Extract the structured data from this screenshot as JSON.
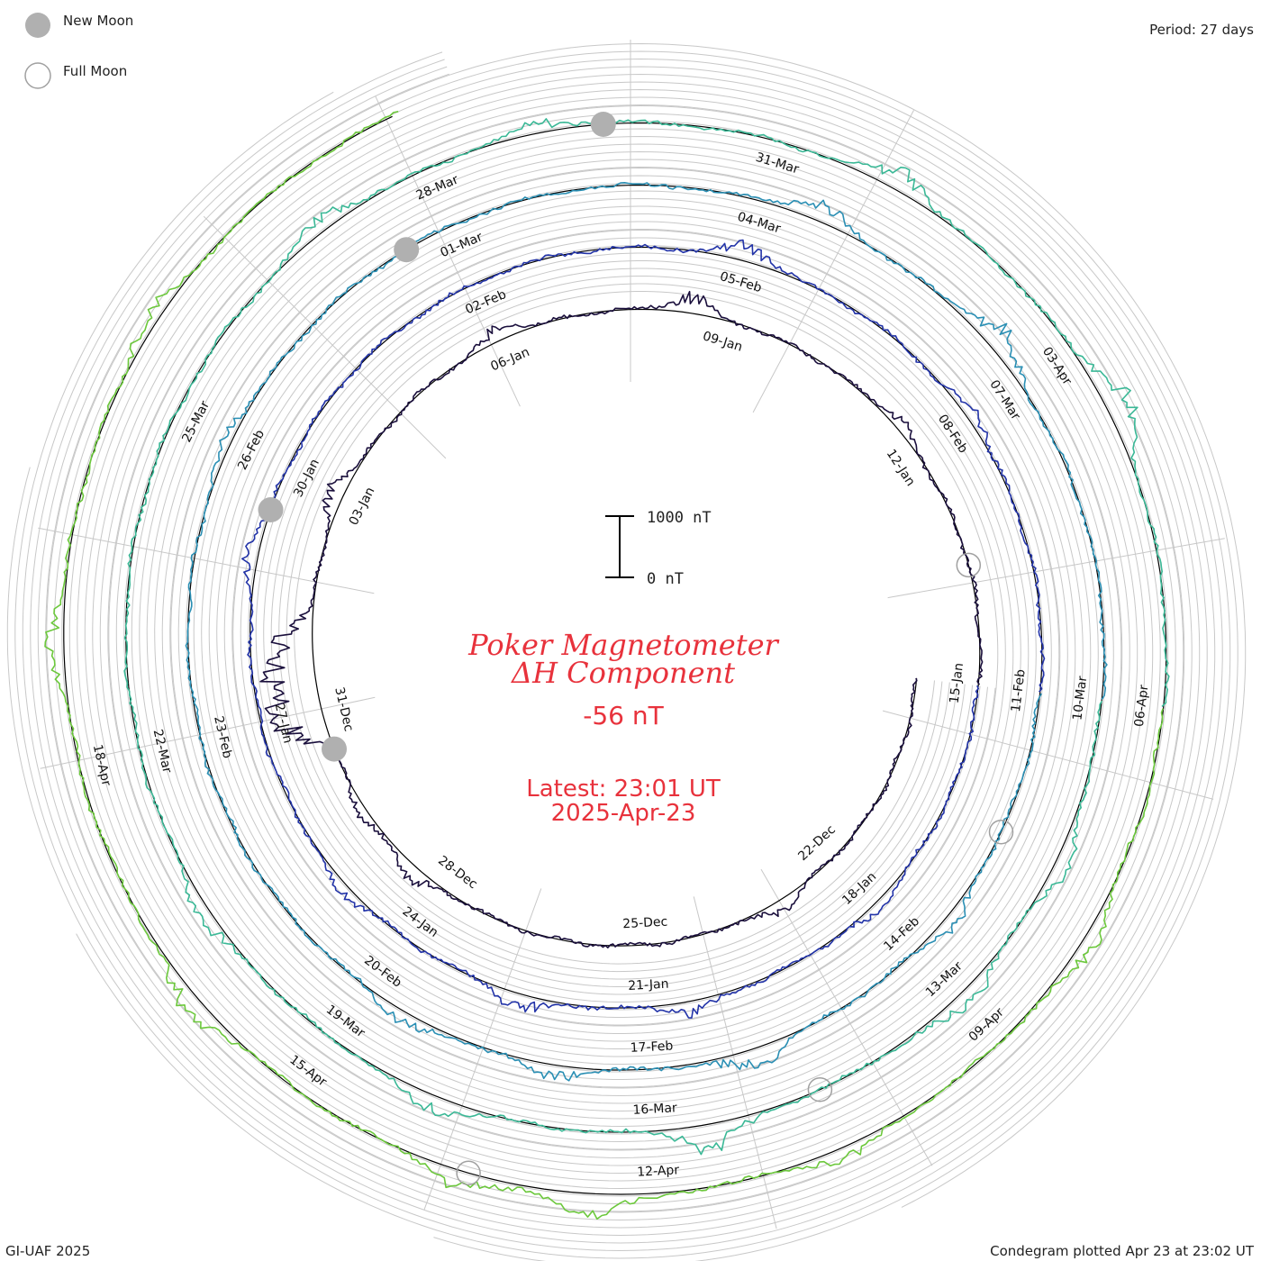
{
  "legend": {
    "new_moon_label": "New Moon",
    "full_moon_label": "Full Moon",
    "new_moon_color": "#b0b0b0",
    "full_moon_color": "#a0a0a0"
  },
  "period_label": "Period: 27 days",
  "footer": {
    "left": "GI-UAF 2025",
    "right": "Condegram plotted Apr 23 at 23:02 UT"
  },
  "center": {
    "title_line1": "Poker Magnetometer",
    "title_line2": "ΔH Component",
    "value": "-56 nT",
    "latest_line1": "Latest: 23:01 UT",
    "latest_line2": "2025-Apr-23",
    "title_color": "#e8323c"
  },
  "scale_bar": {
    "top_label": "1000 nT",
    "bottom_label": "0 nT"
  },
  "chart_data": {
    "type": "line",
    "subtype": "condegram-spiral",
    "period_days": 27,
    "start_date": "2024-12-19",
    "end_date": "2025-04-23",
    "scale": "1000 nT per scale bar",
    "grid": true,
    "date_labels": [
      {
        "text": "22-Dec"
      },
      {
        "text": "25-Dec"
      },
      {
        "text": "28-Dec"
      },
      {
        "text": "31-Dec"
      },
      {
        "text": "03-Jan"
      },
      {
        "text": "06-Jan"
      },
      {
        "text": "09-Jan"
      },
      {
        "text": "12-Jan"
      },
      {
        "text": "15-Jan"
      },
      {
        "text": "18-Jan"
      },
      {
        "text": "21-Jan"
      },
      {
        "text": "24-Jan"
      },
      {
        "text": "27-Jan"
      },
      {
        "text": "30-Jan"
      },
      {
        "text": "02-Feb"
      },
      {
        "text": "05-Feb"
      },
      {
        "text": "08-Feb"
      },
      {
        "text": "11-Feb"
      },
      {
        "text": "14-Feb"
      },
      {
        "text": "17-Feb"
      },
      {
        "text": "20-Feb"
      },
      {
        "text": "23-Feb"
      },
      {
        "text": "26-Feb"
      },
      {
        "text": "01-Mar"
      },
      {
        "text": "04-Mar"
      },
      {
        "text": "07-Mar"
      },
      {
        "text": "10-Mar"
      },
      {
        "text": "13-Mar"
      },
      {
        "text": "16-Mar"
      },
      {
        "text": "19-Mar"
      },
      {
        "text": "22-Mar"
      },
      {
        "text": "25-Mar"
      },
      {
        "text": "28-Mar"
      },
      {
        "text": "31-Mar"
      },
      {
        "text": "03-Apr"
      },
      {
        "text": "06-Apr"
      },
      {
        "text": "09-Apr"
      },
      {
        "text": "12-Apr"
      },
      {
        "text": "15-Apr"
      },
      {
        "text": "18-Apr"
      }
    ],
    "new_moons": [
      "2024-12-30",
      "2025-01-29",
      "2025-02-28",
      "2025-03-29"
    ],
    "full_moons": [
      "2025-01-13",
      "2025-02-12",
      "2025-03-14",
      "2025-04-13"
    ],
    "series": [
      {
        "color": "#1a0f3c",
        "disturbances": [
          {
            "day": 4,
            "amp": 250
          },
          {
            "day": 9.5,
            "amp": 300
          },
          {
            "day": 10.5,
            "amp": 200
          },
          {
            "day": 12,
            "amp": 900
          },
          {
            "day": 12.5,
            "amp": 750
          },
          {
            "day": 13,
            "amp": 600
          },
          {
            "day": 15,
            "amp": 350
          },
          {
            "day": 18,
            "amp": 250
          },
          {
            "day": 20.5,
            "amp": 350
          },
          {
            "day": 23.5,
            "amp": 200
          }
        ]
      },
      {
        "color": "#2233a8",
        "disturbances": [
          {
            "day": 3,
            "amp": 180
          },
          {
            "day": 5.5,
            "amp": 250
          },
          {
            "day": 7.5,
            "amp": 300
          },
          {
            "day": 10,
            "amp": 220
          },
          {
            "day": 14,
            "amp": 250
          },
          {
            "day": 21,
            "amp": 350
          },
          {
            "day": 24,
            "amp": 200
          }
        ]
      },
      {
        "color": "#2a8fb4",
        "disturbances": [
          {
            "day": 2.5,
            "amp": 250
          },
          {
            "day": 5,
            "amp": 400
          },
          {
            "day": 7,
            "amp": 250
          },
          {
            "day": 8.5,
            "amp": 300
          },
          {
            "day": 15,
            "amp": 200
          },
          {
            "day": 21.5,
            "amp": 350
          },
          {
            "day": 23.5,
            "amp": 450
          }
        ]
      },
      {
        "color": "#3ab896",
        "disturbances": [
          {
            "day": 1.5,
            "amp": 300
          },
          {
            "day": 3,
            "amp": 350
          },
          {
            "day": 5.5,
            "amp": 500
          },
          {
            "day": 8,
            "amp": 350
          },
          {
            "day": 10.5,
            "amp": 250
          },
          {
            "day": 17,
            "amp": 300
          },
          {
            "day": 19,
            "amp": 200
          },
          {
            "day": 22,
            "amp": 400
          },
          {
            "day": 24.5,
            "amp": 500
          }
        ]
      },
      {
        "color": "#6cc83c",
        "disturbances": [
          {
            "day": 2,
            "amp": 280
          },
          {
            "day": 4.5,
            "amp": 250
          },
          {
            "day": 6.5,
            "amp": 500
          },
          {
            "day": 7.5,
            "amp": 350
          },
          {
            "day": 10,
            "amp": 400
          },
          {
            "day": 13,
            "amp": 300
          },
          {
            "day": 15.5,
            "amp": 250
          },
          {
            "day": 18.5,
            "amp": 350
          },
          {
            "day": 22.5,
            "amp": 300
          },
          {
            "day": 24.5,
            "amp": 400
          }
        ]
      },
      {
        "color": "#a8b41e",
        "disturbances": [
          {
            "day": 1.5,
            "amp": 250
          },
          {
            "day": 3,
            "amp": 200
          },
          {
            "day": 5,
            "amp": 300
          },
          {
            "day": 9.5,
            "amp": 250
          },
          {
            "day": 12.5,
            "amp": 200
          },
          {
            "day": 15,
            "amp": 250
          },
          {
            "day": 18.5,
            "amp": 300
          },
          {
            "day": 22.5,
            "amp": 350
          },
          {
            "day": 25.5,
            "amp": 250
          }
        ]
      },
      {
        "color": "#c8961e",
        "disturbances": [
          {
            "day": 2.5,
            "amp": 300
          },
          {
            "day": 4.5,
            "amp": 250
          },
          {
            "day": 6.5,
            "amp": 350
          },
          {
            "day": 8,
            "amp": 400
          },
          {
            "day": 10,
            "amp": 300
          },
          {
            "day": 12,
            "amp": 300
          },
          {
            "day": 14,
            "amp": 350
          },
          {
            "day": 17,
            "amp": 250
          }
        ]
      },
      {
        "color": "#c8501e",
        "disturbances": [
          {
            "day": 2,
            "amp": 250
          },
          {
            "day": 5,
            "amp": 350
          },
          {
            "day": 8,
            "amp": 300
          },
          {
            "day": 11,
            "amp": 300
          },
          {
            "day": 15.5,
            "amp": 400
          },
          {
            "day": 18,
            "amp": 250
          },
          {
            "day": 20.5,
            "amp": 300
          },
          {
            "day": 22.5,
            "amp": 350
          },
          {
            "day": 25,
            "amp": 300
          }
        ]
      }
    ]
  }
}
